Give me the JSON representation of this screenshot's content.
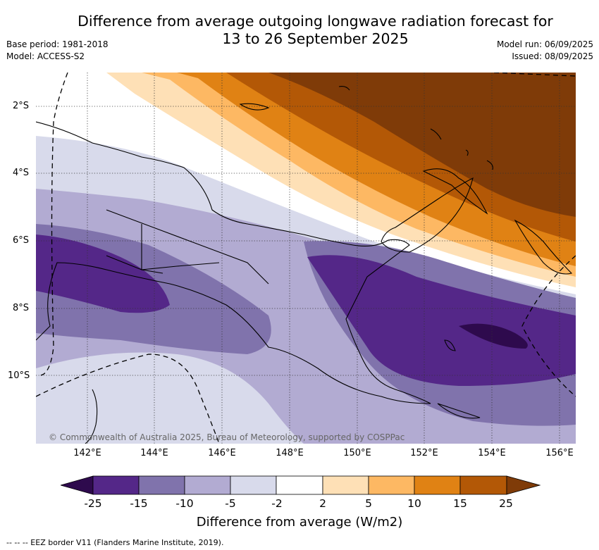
{
  "title": {
    "line1": "Difference from average outgoing longwave radiation forecast for",
    "line2": "13 to 26 September 2025"
  },
  "meta_left": {
    "base_period": "Base period: 1981-2018",
    "model": "Model: ACCESS-S2"
  },
  "meta_right": {
    "model_run": "Model run: 06/09/2025",
    "issued": "Issued: 08/09/2025"
  },
  "map": {
    "latitude_labels": [
      "2°S",
      "4°S",
      "6°S",
      "8°S",
      "10°S"
    ],
    "longitude_labels": [
      "142°E",
      "144°E",
      "146°E",
      "148°E",
      "150°E",
      "152°E",
      "154°E",
      "156°E"
    ],
    "copyright": "© Commonwealth of Australia 2025, Bureau of Meteorology, supported by COSPPac"
  },
  "colorbar": {
    "ticks": [
      "-25",
      "-15",
      "-10",
      "-5",
      "-2",
      "2",
      "5",
      "10",
      "15",
      "25"
    ],
    "colors": [
      "#2e0a4d",
      "#542788",
      "#8073ac",
      "#b2abd2",
      "#d8daeb",
      "#ffffff",
      "#fee0b6",
      "#fdb863",
      "#e08214",
      "#b35806",
      "#7f3b08"
    ],
    "label": "Difference from average (W/m2)"
  },
  "footer": "-- -- -- EEZ border V11 (Flanders Marine Institute, 2019)."
}
